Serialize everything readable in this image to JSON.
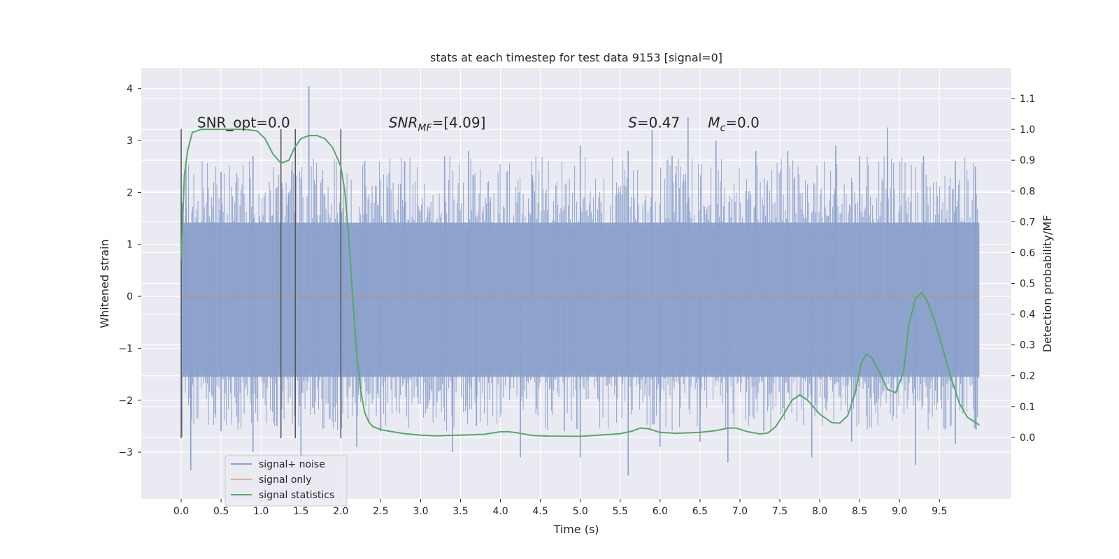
{
  "chart_data": {
    "type": "line",
    "title": "stats at each timestep for test data 9153 [signal=0]",
    "xlabel": "Time (s)",
    "ylabel_left": "Whitened strain",
    "ylabel_right": "Detection probability/MF",
    "xlim": [
      -0.5,
      10.4
    ],
    "ylim_left": [
      -3.9,
      4.4
    ],
    "ylim_right": [
      -0.2,
      1.2
    ],
    "x_ticks": [
      0.0,
      0.5,
      1.0,
      1.5,
      2.0,
      2.5,
      3.0,
      3.5,
      4.0,
      4.5,
      5.0,
      5.5,
      6.0,
      6.5,
      7.0,
      7.5,
      8.0,
      8.5,
      9.0,
      9.5
    ],
    "x_tick_labels": [
      "0.0",
      "0.5",
      "1.0",
      "1.5",
      "2.0",
      "2.5",
      "3.0",
      "3.5",
      "4.0",
      "4.5",
      "5.0",
      "5.5",
      "6.0",
      "6.5",
      "7.0",
      "7.5",
      "8.0",
      "8.5",
      "9.0",
      "9.5"
    ],
    "y_left_ticks": [
      -3,
      -2,
      -1,
      0,
      1,
      2,
      3,
      4
    ],
    "y_left_tick_labels": [
      "−3",
      "−2",
      "−1",
      "0",
      "1",
      "2",
      "3",
      "4"
    ],
    "y_right_ticks": [
      0.0,
      0.1,
      0.2,
      0.3,
      0.4,
      0.5,
      0.6,
      0.7,
      0.8,
      0.9,
      1.0,
      1.1
    ],
    "y_right_tick_labels": [
      "0.0",
      "0.1",
      "0.2",
      "0.3",
      "0.4",
      "0.5",
      "0.6",
      "0.7",
      "0.8",
      "0.9",
      "1.0",
      "1.1"
    ],
    "grid": true,
    "legend_position": "lower-left",
    "series": [
      {
        "name": "signal+ noise",
        "axis": "left",
        "color": "#8aa0cb",
        "x_range": [
          0.0,
          10.0
        ],
        "band": [
          -1.55,
          1.42
        ],
        "peaks_high": [
          [
            0.01,
            1.8
          ],
          [
            0.06,
            2.5
          ],
          [
            0.5,
            2.4
          ],
          [
            0.9,
            2.7
          ],
          [
            1.2,
            2.1
          ],
          [
            1.35,
            2.0
          ],
          [
            1.6,
            4.05
          ],
          [
            2.3,
            2.6
          ],
          [
            2.8,
            2.6
          ],
          [
            3.3,
            2.7
          ],
          [
            3.6,
            2.8
          ],
          [
            4.4,
            2.3
          ],
          [
            5.0,
            2.9
          ],
          [
            5.6,
            2.8
          ],
          [
            5.9,
            3.2
          ],
          [
            6.15,
            2.7
          ],
          [
            6.35,
            3.45
          ],
          [
            6.7,
            3.0
          ],
          [
            7.2,
            2.8
          ],
          [
            7.6,
            2.8
          ],
          [
            8.2,
            2.9
          ],
          [
            8.5,
            2.7
          ],
          [
            8.85,
            3.25
          ],
          [
            9.3,
            2.7
          ],
          [
            9.7,
            2.6
          ],
          [
            9.95,
            2.5
          ]
        ],
        "peaks_low": [
          [
            0.01,
            -2.7
          ],
          [
            0.12,
            -3.35
          ],
          [
            0.5,
            -2.6
          ],
          [
            0.9,
            -3.0
          ],
          [
            1.2,
            -2.5
          ],
          [
            1.5,
            -3.2
          ],
          [
            2.2,
            -2.9
          ],
          [
            2.5,
            -2.6
          ],
          [
            3.4,
            -3.0
          ],
          [
            3.7,
            -2.5
          ],
          [
            4.25,
            -3.1
          ],
          [
            4.8,
            -2.6
          ],
          [
            5.0,
            -3.1
          ],
          [
            5.6,
            -3.45
          ],
          [
            6.0,
            -2.9
          ],
          [
            6.5,
            -2.8
          ],
          [
            6.85,
            -3.2
          ],
          [
            7.3,
            -2.6
          ],
          [
            7.9,
            -3.1
          ],
          [
            8.4,
            -2.8
          ],
          [
            9.2,
            -3.25
          ],
          [
            9.7,
            -2.85
          ],
          [
            9.95,
            -2.55
          ]
        ]
      },
      {
        "name": "signal only",
        "axis": "left",
        "color": "#dd8452",
        "x": [
          0.0,
          10.0
        ],
        "y": [
          0.0,
          0.0
        ]
      },
      {
        "name": "signal statistics",
        "axis": "right",
        "color": "#55a868",
        "x": [
          0.0,
          0.04,
          0.08,
          0.14,
          0.25,
          0.4,
          0.6,
          0.8,
          0.95,
          1.05,
          1.15,
          1.25,
          1.35,
          1.42,
          1.5,
          1.6,
          1.7,
          1.8,
          1.9,
          2.0,
          2.05,
          2.1,
          2.15,
          2.2,
          2.25,
          2.3,
          2.35,
          2.4,
          2.5,
          2.6,
          2.8,
          3.0,
          3.2,
          3.5,
          3.8,
          4.0,
          4.1,
          4.2,
          4.4,
          4.6,
          5.0,
          5.3,
          5.5,
          5.65,
          5.75,
          5.85,
          6.0,
          6.2,
          6.5,
          6.7,
          6.85,
          6.95,
          7.1,
          7.25,
          7.35,
          7.45,
          7.55,
          7.65,
          7.75,
          7.85,
          8.0,
          8.15,
          8.25,
          8.35,
          8.45,
          8.52,
          8.58,
          8.65,
          8.75,
          8.85,
          8.95,
          9.05,
          9.12,
          9.2,
          9.28,
          9.35,
          9.45,
          9.55,
          9.65,
          9.75,
          9.85,
          10.0
        ],
        "y": [
          0.58,
          0.85,
          0.93,
          0.99,
          1.0,
          1.0,
          1.0,
          1.0,
          0.995,
          0.97,
          0.92,
          0.89,
          0.9,
          0.94,
          0.97,
          0.98,
          0.98,
          0.97,
          0.94,
          0.88,
          0.8,
          0.65,
          0.45,
          0.27,
          0.15,
          0.08,
          0.05,
          0.035,
          0.025,
          0.02,
          0.012,
          0.007,
          0.005,
          0.007,
          0.01,
          0.018,
          0.018,
          0.015,
          0.006,
          0.004,
          0.003,
          0.008,
          0.012,
          0.02,
          0.03,
          0.028,
          0.016,
          0.013,
          0.016,
          0.022,
          0.03,
          0.03,
          0.018,
          0.011,
          0.014,
          0.035,
          0.075,
          0.12,
          0.138,
          0.12,
          0.075,
          0.048,
          0.046,
          0.07,
          0.15,
          0.24,
          0.27,
          0.26,
          0.21,
          0.155,
          0.145,
          0.21,
          0.37,
          0.45,
          0.47,
          0.44,
          0.37,
          0.28,
          0.19,
          0.11,
          0.065,
          0.04
        ]
      }
    ],
    "vertical_lines": [
      0.0,
      1.25,
      1.43,
      2.0
    ],
    "annotations": [
      {
        "text": "SNR_opt=0.0",
        "x": 0.2,
        "y": 3.25
      },
      {
        "text": "SNR_MF=[4.09]",
        "x": 2.6,
        "y": 3.25
      },
      {
        "text": "S=0.47",
        "x": 5.6,
        "y": 3.25
      },
      {
        "text": "M_c=0.0",
        "x": 6.6,
        "y": 3.25
      }
    ],
    "legend": [
      "signal+ noise",
      "signal only",
      "signal statistics"
    ]
  }
}
